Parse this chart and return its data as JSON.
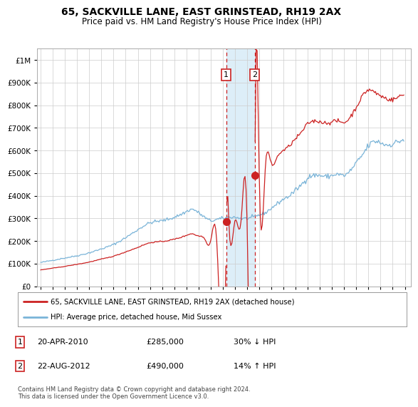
{
  "title": "65, SACKVILLE LANE, EAST GRINSTEAD, RH19 2AX",
  "subtitle": "Price paid vs. HM Land Registry's House Price Index (HPI)",
  "legend_line1": "65, SACKVILLE LANE, EAST GRINSTEAD, RH19 2AX (detached house)",
  "legend_line2": "HPI: Average price, detached house, Mid Sussex",
  "sale1_date": "20-APR-2010",
  "sale1_price": "£285,000",
  "sale1_hpi": "30% ↓ HPI",
  "sale1_year": 2010.29,
  "sale1_value": 285000,
  "sale2_date": "22-AUG-2012",
  "sale2_price": "£490,000",
  "sale2_hpi": "14% ↑ HPI",
  "sale2_year": 2012.64,
  "sale2_value": 490000,
  "footnote": "Contains HM Land Registry data © Crown copyright and database right 2024.\nThis data is licensed under the Open Government Licence v3.0.",
  "hpi_color": "#7ab4d8",
  "sale_color": "#cc2222",
  "background_color": "#ffffff",
  "grid_color": "#cccccc",
  "shade_color": "#ddeef8",
  "ylim_max": 1050000,
  "xlim_start": 1995.0,
  "xlim_end": 2025.5
}
